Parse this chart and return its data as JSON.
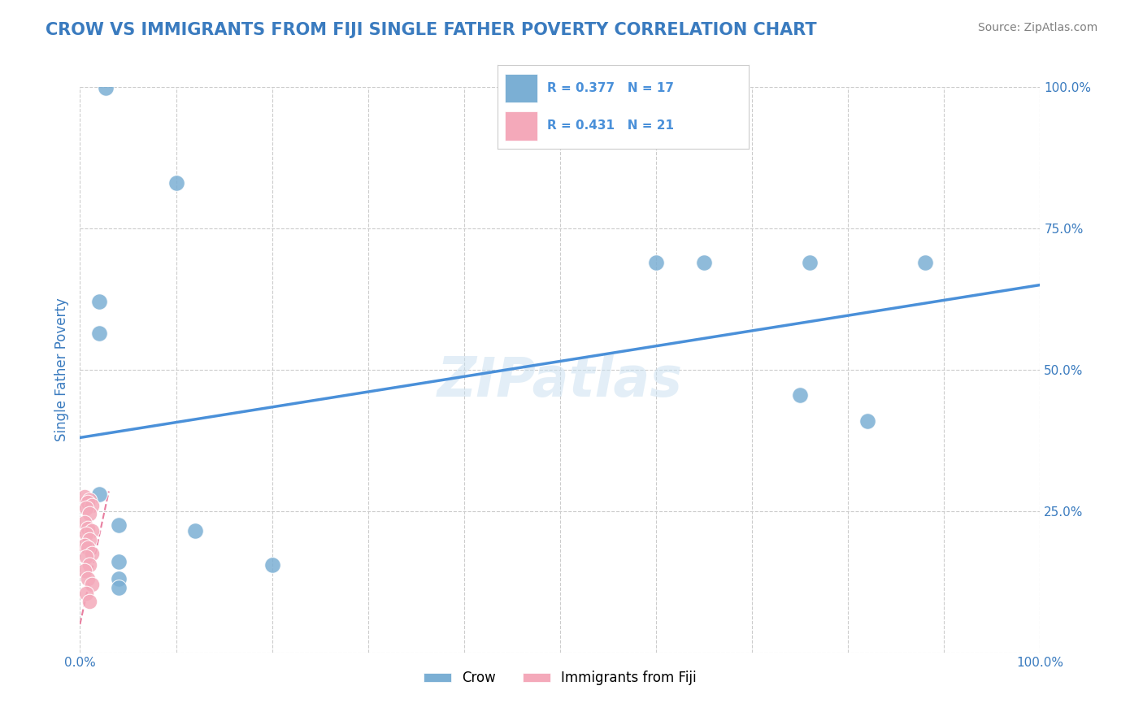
{
  "title": "CROW VS IMMIGRANTS FROM FIJI SINGLE FATHER POVERTY CORRELATION CHART",
  "source": "Source: ZipAtlas.com",
  "ylabel": "Single Father Poverty",
  "legend_blue_r": "R = 0.377",
  "legend_blue_n": "N = 17",
  "legend_pink_r": "R = 0.431",
  "legend_pink_n": "N = 21",
  "legend_label_blue": "Crow",
  "legend_label_pink": "Immigrants from Fiji",
  "watermark": "ZIPatlas",
  "blue_color": "#7bafd4",
  "pink_color": "#f4a9ba",
  "trendline_blue_color": "#4a90d9",
  "trendline_pink_color": "#e87fa0",
  "blue_dots": [
    [
      0.027,
      0.999
    ],
    [
      0.1,
      0.83
    ],
    [
      0.02,
      0.62
    ],
    [
      0.02,
      0.565
    ],
    [
      0.02,
      0.28
    ],
    [
      0.6,
      0.69
    ],
    [
      0.65,
      0.69
    ],
    [
      0.76,
      0.69
    ],
    [
      0.88,
      0.69
    ],
    [
      0.75,
      0.455
    ],
    [
      0.82,
      0.41
    ],
    [
      0.04,
      0.225
    ],
    [
      0.12,
      0.215
    ],
    [
      0.04,
      0.16
    ],
    [
      0.2,
      0.155
    ],
    [
      0.04,
      0.13
    ],
    [
      0.04,
      0.115
    ]
  ],
  "pink_dots": [
    [
      0.005,
      0.275
    ],
    [
      0.01,
      0.27
    ],
    [
      0.008,
      0.265
    ],
    [
      0.012,
      0.26
    ],
    [
      0.006,
      0.255
    ],
    [
      0.01,
      0.245
    ],
    [
      0.005,
      0.23
    ],
    [
      0.008,
      0.22
    ],
    [
      0.012,
      0.215
    ],
    [
      0.006,
      0.21
    ],
    [
      0.01,
      0.2
    ],
    [
      0.005,
      0.19
    ],
    [
      0.008,
      0.185
    ],
    [
      0.012,
      0.175
    ],
    [
      0.006,
      0.17
    ],
    [
      0.01,
      0.155
    ],
    [
      0.005,
      0.145
    ],
    [
      0.008,
      0.13
    ],
    [
      0.012,
      0.12
    ],
    [
      0.006,
      0.105
    ],
    [
      0.01,
      0.09
    ]
  ],
  "blue_trend": [
    0.0,
    0.38,
    1.0,
    0.65
  ],
  "pink_trend": [
    0.0,
    0.05,
    0.03,
    0.285
  ],
  "xlim": [
    0.0,
    1.0
  ],
  "ylim": [
    0.0,
    1.0
  ],
  "xticks": [
    0.0,
    0.1,
    0.2,
    0.3,
    0.4,
    0.5,
    0.6,
    0.7,
    0.8,
    0.9,
    1.0
  ],
  "ytick_positions": [
    0.0,
    0.25,
    0.5,
    0.75,
    1.0
  ],
  "grid_color": "#cccccc",
  "bg_color": "#ffffff",
  "title_color": "#3a7bbf",
  "axis_color": "#3a7bbf",
  "tick_color": "#3a7bbf"
}
